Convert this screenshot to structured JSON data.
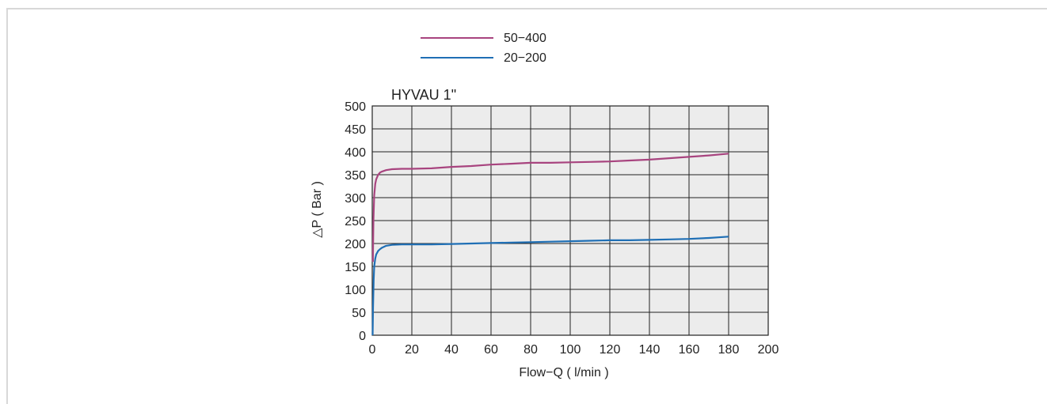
{
  "chart_data": {
    "type": "line",
    "title": "HYVAU 1\"",
    "xlabel": "Flow−Q ( l/min )",
    "ylabel": "△P ( Bar )",
    "xlim": [
      0,
      200
    ],
    "ylim": [
      0,
      500
    ],
    "x_ticks": [
      "0",
      "20",
      "40",
      "60",
      "80",
      "100",
      "120",
      "140",
      "160",
      "180",
      "200"
    ],
    "y_ticks": [
      "0",
      "50",
      "100",
      "150",
      "200",
      "250",
      "300",
      "350",
      "400",
      "450",
      "500"
    ],
    "grid": true,
    "legend_position": "top-center",
    "plot_background": "#ececec",
    "series": [
      {
        "name": "50−400",
        "color": "#a8447f",
        "x": [
          0.3,
          0.6,
          1,
          1.5,
          2,
          3,
          4,
          5,
          7,
          10,
          15,
          20,
          30,
          40,
          50,
          60,
          70,
          80,
          90,
          100,
          110,
          120,
          130,
          140,
          150,
          160,
          170,
          180
        ],
        "y": [
          160,
          250,
          305,
          330,
          340,
          350,
          355,
          357,
          360,
          362,
          363,
          363,
          364,
          367,
          369,
          372,
          374,
          376,
          376,
          377,
          378,
          379,
          381,
          383,
          386,
          389,
          392,
          396
        ]
      },
      {
        "name": "20−200",
        "color": "#1f6fb5",
        "x": [
          0.2,
          0.4,
          0.7,
          1,
          1.5,
          2,
          3,
          4,
          5,
          7,
          10,
          15,
          20,
          30,
          40,
          50,
          60,
          70,
          80,
          90,
          100,
          110,
          120,
          130,
          140,
          150,
          160,
          170,
          180
        ],
        "y": [
          0,
          60,
          120,
          150,
          167,
          176,
          184,
          188,
          191,
          195,
          197,
          198,
          198,
          198,
          199,
          200,
          201,
          202,
          203,
          204,
          205,
          206,
          207,
          207,
          208,
          209,
          210,
          212,
          215
        ]
      }
    ]
  }
}
